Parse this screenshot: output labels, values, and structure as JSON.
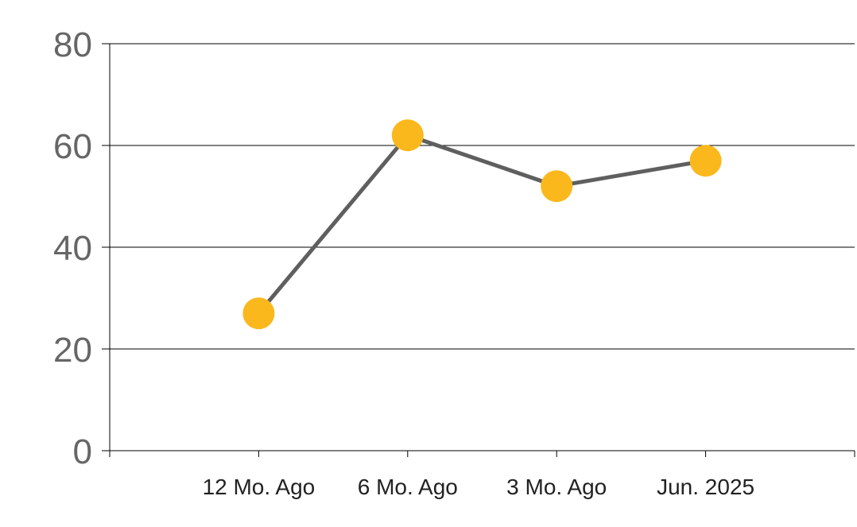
{
  "chart_data": {
    "type": "line",
    "categories": [
      "12 Mo. Ago",
      "6 Mo. Ago",
      "3 Mo. Ago",
      "Jun. 2025"
    ],
    "values": [
      27,
      62,
      52,
      57
    ],
    "ylim": [
      0,
      80
    ],
    "yticks": [
      "0",
      "20",
      "40",
      "60",
      "80"
    ],
    "grid": true,
    "legend": "none",
    "colors": {
      "line": "#5f5f5f",
      "marker": "#fbb81c",
      "grid": "#000000",
      "tick_text": "#666666",
      "category_text": "#222222"
    }
  }
}
